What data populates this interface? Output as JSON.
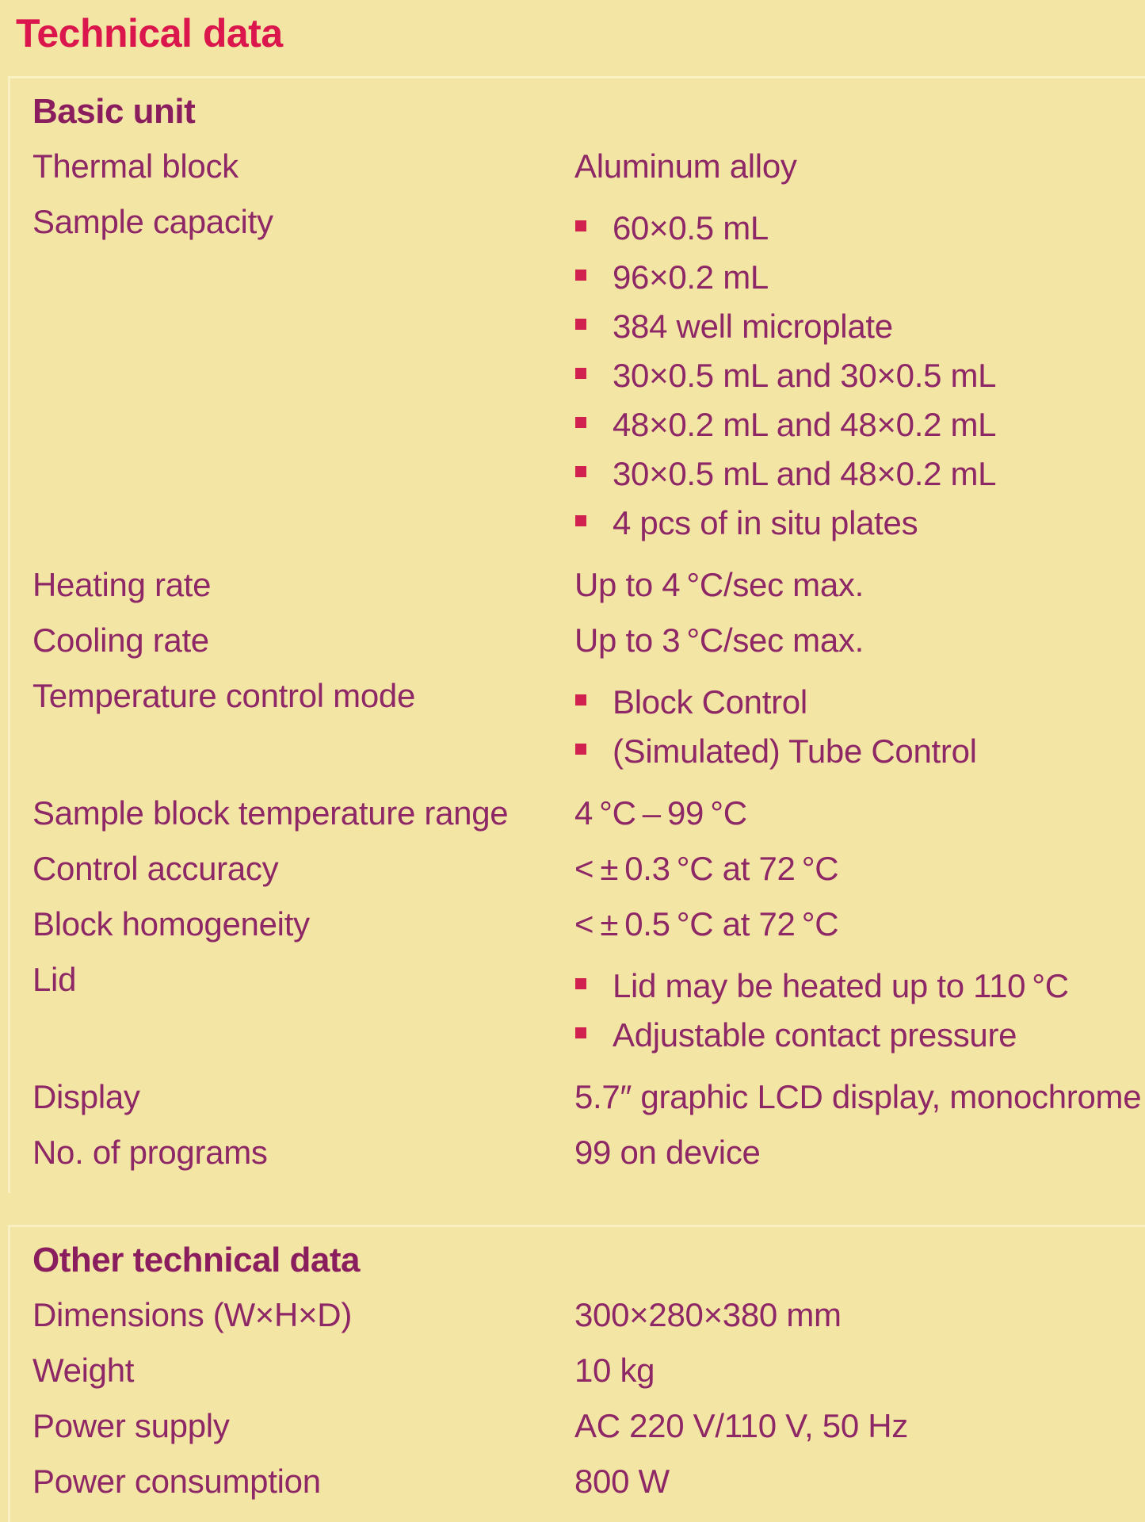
{
  "title": "Technical data",
  "colors": {
    "background": "#f3e6a5",
    "title_red": "#da164d",
    "heading_purple": "#8a1d5e",
    "body_purple": "#8e2766",
    "bullet_square": "#d0214f",
    "panel_edge_highlight": "#f9f1c2"
  },
  "sections": [
    {
      "heading": "Basic unit",
      "rows": [
        {
          "label": "Thermal block",
          "value": "Aluminum alloy"
        },
        {
          "label": "Sample capacity",
          "bullets": [
            "60×0.5 mL",
            "96×0.2 mL",
            "384 well microplate",
            "30×0.5 mL and 30×0.5 mL",
            "48×0.2 mL and 48×0.2 mL",
            "30×0.5 mL and 48×0.2 mL",
            "4 pcs of in situ plates"
          ]
        },
        {
          "label": "Heating rate",
          "value": "Up to 4 °C/sec max."
        },
        {
          "label": "Cooling rate",
          "value": "Up to 3 °C/sec max."
        },
        {
          "label": "Temperature control mode",
          "bullets": [
            "Block Control",
            "(Simulated) Tube Control"
          ]
        },
        {
          "label": "Sample block temperature range",
          "value": "4 °C – 99 °C"
        },
        {
          "label": "Control accuracy",
          "value": "< ± 0.3 °C at 72 °C"
        },
        {
          "label": "Block homogeneity",
          "value": "< ± 0.5 °C at 72 °C"
        },
        {
          "label": "Lid",
          "bullets": [
            "Lid may be heated up to 110 °C",
            "Adjustable contact pressure"
          ]
        },
        {
          "label": "Display",
          "value": "5.7″ graphic LCD display, monochrome"
        },
        {
          "label": "No. of programs",
          "value": "99 on device"
        }
      ]
    },
    {
      "heading": "Other technical data",
      "rows": [
        {
          "label": "Dimensions (W×H×D)",
          "value": "300×280×380 mm"
        },
        {
          "label": "Weight",
          "value": "10 kg"
        },
        {
          "label": "Power supply",
          "value": "AC 220 V/110 V, 50 Hz"
        },
        {
          "label": "Power consumption",
          "value": "800 W"
        }
      ]
    }
  ]
}
